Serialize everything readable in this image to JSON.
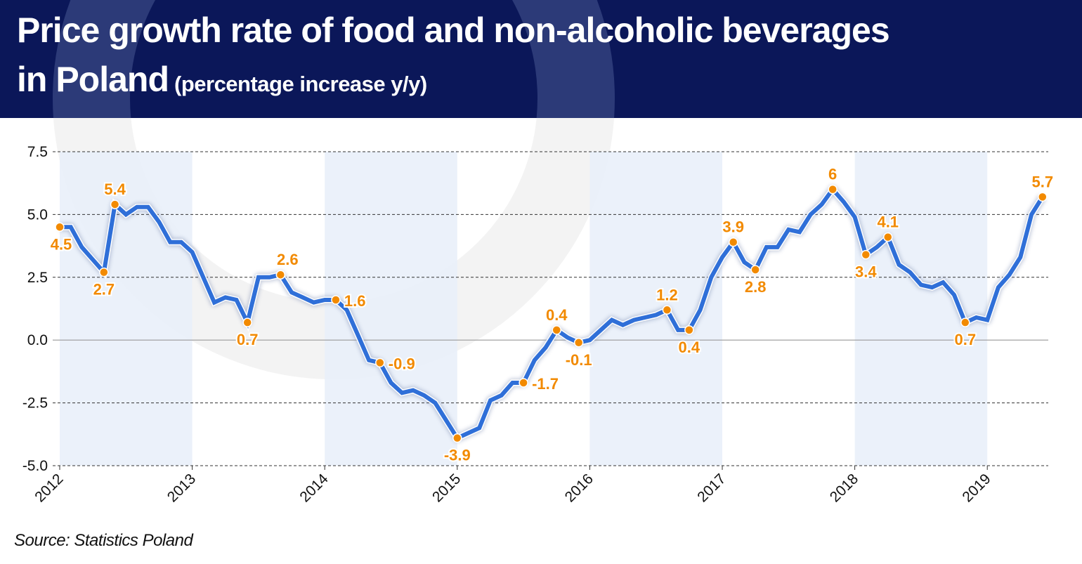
{
  "header": {
    "title_line1": "Price growth rate of food and non-alcoholic beverages",
    "title_line2": "in Poland",
    "subtitle": "(percentage increase y/y)"
  },
  "source": "Source: Statistics Poland",
  "colors": {
    "header_bg": "#0b1759",
    "line": "#2f6fd8",
    "marker": "#f28a00",
    "band": "#e8eef9"
  },
  "chart_data": {
    "type": "line",
    "title": "Price growth rate of food and non-alcoholic beverages in Poland (percentage increase y/y)",
    "xlabel": "",
    "ylabel": "",
    "ylim": [
      -5.0,
      7.5
    ],
    "yticks": [
      "7.5",
      "5.0",
      "2.5",
      "0.0",
      "-2.5",
      "-5.0"
    ],
    "ytick_values": [
      7.5,
      5.0,
      2.5,
      0.0,
      -2.5,
      -5.0
    ],
    "xticks": [
      "2012",
      "2013",
      "2014",
      "2015",
      "2016",
      "2017",
      "2018",
      "2019"
    ],
    "start": "2012-01",
    "frequency": "monthly",
    "shaded_years": [
      "2012",
      "2014",
      "2016",
      "2018"
    ],
    "grid": "horizontal dashed",
    "series": [
      {
        "name": "Food and non-alcoholic beverages y/y",
        "values": [
          4.5,
          4.5,
          3.7,
          3.2,
          2.7,
          5.4,
          5.0,
          5.3,
          5.3,
          4.7,
          3.9,
          3.9,
          3.5,
          2.5,
          1.5,
          1.7,
          1.6,
          0.7,
          2.5,
          2.5,
          2.6,
          1.9,
          1.7,
          1.5,
          1.6,
          1.6,
          1.2,
          0.2,
          -0.8,
          -0.9,
          -1.7,
          -2.1,
          -2.0,
          -2.2,
          -2.5,
          -3.2,
          -3.9,
          -3.7,
          -3.5,
          -2.4,
          -2.2,
          -1.7,
          -1.7,
          -0.8,
          -0.3,
          0.4,
          0.1,
          -0.1,
          0.0,
          0.4,
          0.8,
          0.6,
          0.8,
          0.9,
          1.0,
          1.2,
          0.4,
          0.4,
          1.2,
          2.5,
          3.3,
          3.9,
          3.1,
          2.8,
          3.7,
          3.7,
          4.4,
          4.3,
          5.0,
          5.4,
          6.0,
          5.5,
          4.9,
          3.4,
          3.7,
          4.1,
          3.0,
          2.7,
          2.2,
          2.1,
          2.3,
          1.8,
          0.7,
          0.9,
          0.8,
          2.1,
          2.6,
          3.3,
          5.0,
          5.7
        ]
      }
    ],
    "annotations": [
      {
        "index": 0,
        "text": "4.5",
        "pos": "below"
      },
      {
        "index": 4,
        "text": "2.7",
        "pos": "below"
      },
      {
        "index": 5,
        "text": "5.4",
        "pos": "above"
      },
      {
        "index": 17,
        "text": "0.7",
        "pos": "below"
      },
      {
        "index": 20,
        "text": "2.6",
        "pos": "above"
      },
      {
        "index": 25,
        "text": "1.6",
        "pos": "right"
      },
      {
        "index": 29,
        "text": "-0.9",
        "pos": "right"
      },
      {
        "index": 36,
        "text": "-3.9",
        "pos": "below"
      },
      {
        "index": 42,
        "text": "-1.7",
        "pos": "right"
      },
      {
        "index": 45,
        "text": "0.4",
        "pos": "above"
      },
      {
        "index": 47,
        "text": "-0.1",
        "pos": "below"
      },
      {
        "index": 55,
        "text": "1.2",
        "pos": "above"
      },
      {
        "index": 57,
        "text": "0.4",
        "pos": "below"
      },
      {
        "index": 61,
        "text": "3.9",
        "pos": "above"
      },
      {
        "index": 63,
        "text": "2.8",
        "pos": "below"
      },
      {
        "index": 70,
        "text": "6",
        "pos": "above"
      },
      {
        "index": 73,
        "text": "3.4",
        "pos": "below"
      },
      {
        "index": 75,
        "text": "4.1",
        "pos": "above"
      },
      {
        "index": 82,
        "text": "0.7",
        "pos": "below"
      },
      {
        "index": 89,
        "text": "5.7",
        "pos": "above"
      }
    ]
  }
}
